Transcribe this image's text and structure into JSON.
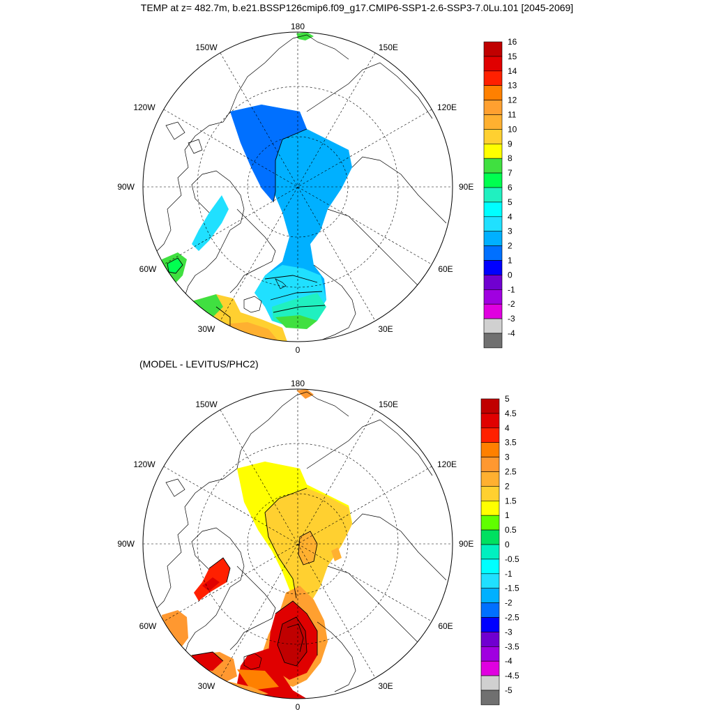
{
  "header": {
    "title": "TEMP at z= 482.7m, b.e21.BSSP126cmip6.f09_g17.CMIP6-SSP1-2.6-SSP3-7.0Lu.101 [2045-2069]"
  },
  "panel2": {
    "subtitle": "(MODEL - LEVITUS/PHC2)"
  },
  "longitude_labels": {
    "top": "180",
    "bottom": "0",
    "left": "90W",
    "right": "90E",
    "upper_left": "150W",
    "upper_right": "150E",
    "mid_upper_left": "120W",
    "mid_upper_right": "120E",
    "lower_left": "60W",
    "lower_right": "60E",
    "bottom_left": "30W",
    "bottom_right": "30E"
  },
  "colorbar1": {
    "labels": [
      "16",
      "15",
      "14",
      "13",
      "12",
      "11",
      "10",
      "9",
      "8",
      "7",
      "6",
      "5",
      "4",
      "3",
      "2",
      "1",
      "0",
      "-1",
      "-2",
      "-3",
      "-4"
    ],
    "colors": [
      "#c00000",
      "#e00000",
      "#ff2000",
      "#ff8000",
      "#ffa030",
      "#ffb030",
      "#ffd030",
      "#ffff00",
      "#40e040",
      "#00ff50",
      "#20f0c0",
      "#00ffff",
      "#20e0ff",
      "#00b0ff",
      "#0070ff",
      "#0000ff",
      "#7000d0",
      "#a000e0",
      "#e000e0",
      "#d0d0d0",
      "#707070"
    ]
  },
  "colorbar2": {
    "labels": [
      "5",
      "4.5",
      "4",
      "3.5",
      "3",
      "2.5",
      "2",
      "1.5",
      "1",
      "0.5",
      "0",
      "-0.5",
      "-1",
      "-1.5",
      "-2",
      "-2.5",
      "-3",
      "-3.5",
      "-4",
      "-4.5",
      "-5"
    ],
    "colors": [
      "#c00000",
      "#e00000",
      "#ff2000",
      "#ff8000",
      "#ff9830",
      "#ffb030",
      "#ffd030",
      "#ffff00",
      "#60ff00",
      "#00e060",
      "#00f0c0",
      "#00ffff",
      "#20e0ff",
      "#00b0ff",
      "#0070ff",
      "#0000ff",
      "#7000d0",
      "#a000e0",
      "#e000e0",
      "#d0d0d0",
      "#707070"
    ]
  }
}
